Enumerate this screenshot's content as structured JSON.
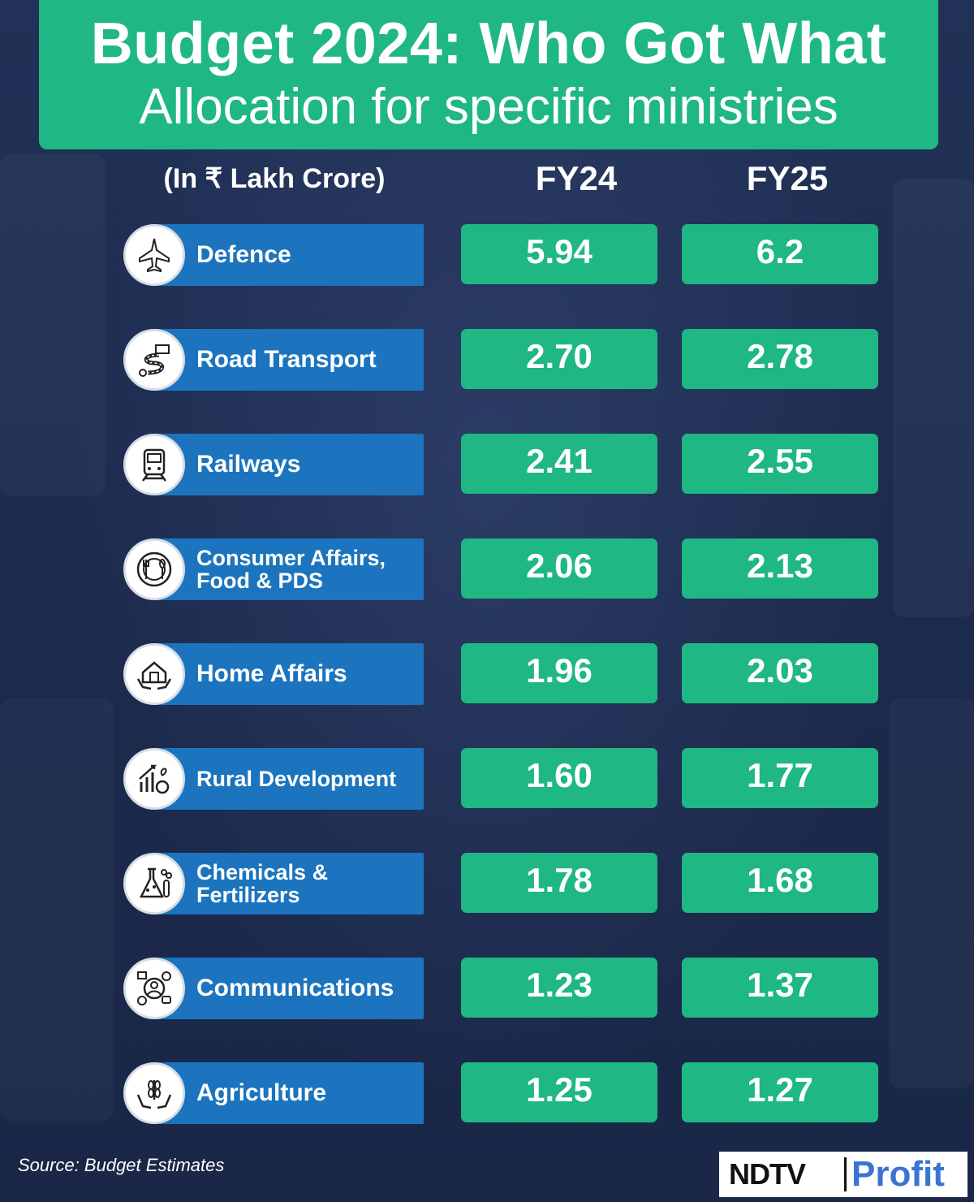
{
  "header": {
    "title": "Budget 2024: Who Got What",
    "subtitle": "Allocation for specific ministries"
  },
  "columns": {
    "unit": "(In ₹ Lakh Crore)",
    "fy24": "FY24",
    "fy25": "FY25"
  },
  "rows": [
    {
      "label": "Defence",
      "icon": "fighter-jet-icon",
      "fy24": "5.94",
      "fy25": "6.2"
    },
    {
      "label": "Road Transport",
      "icon": "road-truck-icon",
      "fy24": "2.70",
      "fy25": "2.78"
    },
    {
      "label": "Railways",
      "icon": "train-icon",
      "fy24": "2.41",
      "fy25": "2.55"
    },
    {
      "label": "Consumer Affairs, Food & PDS",
      "icon": "plate-cutlery-icon",
      "fy24": "2.06",
      "fy25": "2.13"
    },
    {
      "label": "Home Affairs",
      "icon": "home-hands-icon",
      "fy24": "1.96",
      "fy25": "2.03"
    },
    {
      "label": "Rural Development",
      "icon": "growth-plant-icon",
      "fy24": "1.60",
      "fy25": "1.77"
    },
    {
      "label": "Chemicals & Fertilizers",
      "icon": "flask-icon",
      "fy24": "1.78",
      "fy25": "1.68"
    },
    {
      "label": "Communications",
      "icon": "network-people-icon",
      "fy24": "1.23",
      "fy25": "1.37"
    },
    {
      "label": "Agriculture",
      "icon": "wheat-hands-icon",
      "fy24": "1.25",
      "fy25": "1.27"
    }
  ],
  "chart_data": {
    "type": "table",
    "title": "Budget 2024: Who Got What",
    "subtitle": "Allocation for specific ministries",
    "unit": "(In ₹ Lakh Crore)",
    "categories": [
      "Defence",
      "Road Transport",
      "Railways",
      "Consumer Affairs, Food & PDS",
      "Home Affairs",
      "Rural Development",
      "Chemicals & Fertilizers",
      "Communications",
      "Agriculture"
    ],
    "series": [
      {
        "name": "FY24",
        "values": [
          5.94,
          2.7,
          2.41,
          2.06,
          1.96,
          1.6,
          1.78,
          1.23,
          1.25
        ]
      },
      {
        "name": "FY25",
        "values": [
          6.2,
          2.78,
          2.55,
          2.13,
          2.03,
          1.77,
          1.68,
          1.37,
          1.27
        ]
      }
    ]
  },
  "footer": {
    "source": "Source: Budget Estimates",
    "logo_left": "NDTV",
    "logo_right": "Profit"
  },
  "colors": {
    "background": "#1f2c4f",
    "green": "#1fb783",
    "blue": "#1b74bd",
    "profit_blue": "#3a74d0"
  }
}
